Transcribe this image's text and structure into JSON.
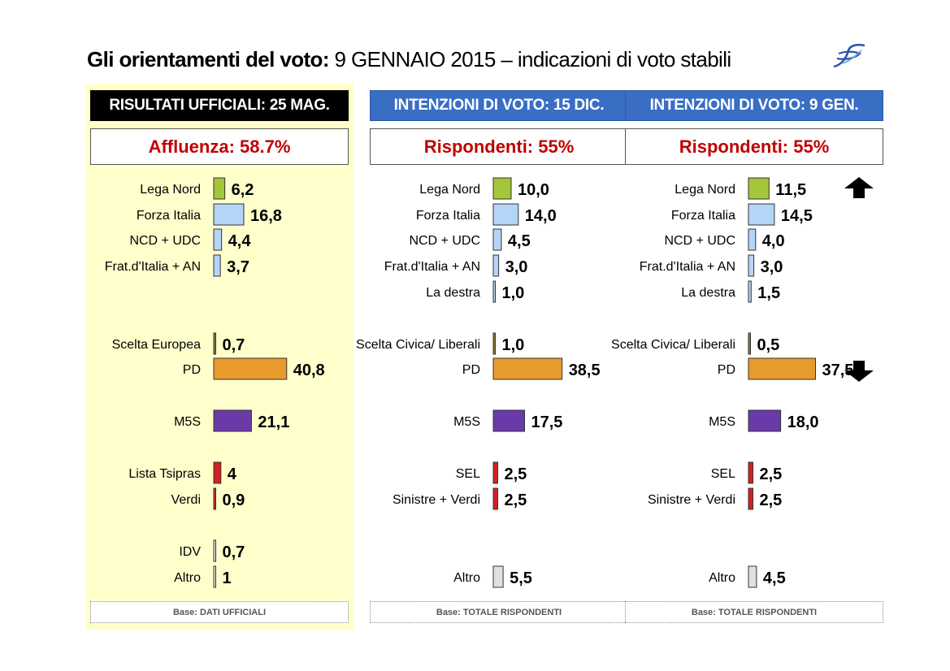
{
  "title": {
    "bold": "Gli orientamenti del voto:",
    "regular": " 9 GENNAIO 2015 – indicazioni di voto stabili"
  },
  "logo_icon": "stylized-f-logo",
  "colors": {
    "lega": "#a4c639",
    "centrodestra": "#b4d4f8",
    "scelta": "#8b7d2a",
    "pd": "#e89a2c",
    "m5s": "#6a3aa8",
    "sinistra": "#d42020",
    "altro": "#e0e0e0",
    "header_blue": "#3a6ec5",
    "highlight_panel": "#ffffcc",
    "accent_red": "#c00000"
  },
  "trend_icons": {
    "lega_nord": "arrow-up-icon",
    "pd": "arrow-down-icon"
  },
  "panels": [
    {
      "header": "RISULTATI UFFICIALI:  25 MAG.",
      "subtitle": "Affluenza: 58.7%",
      "footer": "Base: DATI UFFICIALI"
    },
    {
      "header": "INTENZIONI DI VOTO:  15 DIC.",
      "subtitle": "Rispondenti: 55%",
      "footer": "Base: TOTALE RISPONDENTI"
    },
    {
      "header": "INTENZIONI DI VOTO:  9 GEN.",
      "subtitle": "Rispondenti: 55%",
      "footer": "Base: TOTALE RISPONDENTI"
    }
  ],
  "chart_data": [
    {
      "type": "bar",
      "orientation": "horizontal",
      "items": [
        {
          "label": "Lega Nord",
          "value": 6.2,
          "display": "6,2",
          "color": "lega"
        },
        {
          "label": "Forza Italia",
          "value": 16.8,
          "display": "16,8",
          "color": "centrodestra"
        },
        {
          "label": "NCD + UDC",
          "value": 4.4,
          "display": "4,4",
          "color": "centrodestra"
        },
        {
          "label": "Frat.d'Italia + AN",
          "value": 3.7,
          "display": "3,7",
          "color": "centrodestra"
        },
        {
          "label": "Scelta Europea",
          "value": 0.7,
          "display": "0,7",
          "color": "scelta"
        },
        {
          "label": "PD",
          "value": 40.8,
          "display": "40,8",
          "color": "pd"
        },
        {
          "label": "M5S",
          "value": 21.1,
          "display": "21,1",
          "color": "m5s"
        },
        {
          "label": "Lista Tsipras",
          "value": 4,
          "display": "4",
          "color": "sinistra"
        },
        {
          "label": "Verdi",
          "value": 0.9,
          "display": "0,9",
          "color": "sinistra"
        },
        {
          "label": "IDV",
          "value": 0.7,
          "display": "0,7",
          "color": "altro"
        },
        {
          "label": "Altro",
          "value": 1,
          "display": "1",
          "color": "altro"
        }
      ]
    },
    {
      "type": "bar",
      "orientation": "horizontal",
      "items": [
        {
          "label": "Lega Nord",
          "value": 10.0,
          "display": "10,0",
          "color": "lega"
        },
        {
          "label": "Forza Italia",
          "value": 14.0,
          "display": "14,0",
          "color": "centrodestra"
        },
        {
          "label": "NCD + UDC",
          "value": 4.5,
          "display": "4,5",
          "color": "centrodestra"
        },
        {
          "label": "Frat.d'Italia + AN",
          "value": 3.0,
          "display": "3,0",
          "color": "centrodestra"
        },
        {
          "label": "La destra",
          "value": 1.0,
          "display": "1,0",
          "color": "centrodestra"
        },
        {
          "label": "Scelta Civica/ Liberali",
          "value": 1.0,
          "display": "1,0",
          "color": "scelta"
        },
        {
          "label": "PD",
          "value": 38.5,
          "display": "38,5",
          "color": "pd"
        },
        {
          "label": "M5S",
          "value": 17.5,
          "display": "17,5",
          "color": "m5s"
        },
        {
          "label": "SEL",
          "value": 2.5,
          "display": "2,5",
          "color": "sinistra"
        },
        {
          "label": "Sinistre + Verdi",
          "value": 2.5,
          "display": "2,5",
          "color": "sinistra"
        },
        {
          "label": "Altro",
          "value": 5.5,
          "display": "5,5",
          "color": "altro"
        }
      ]
    },
    {
      "type": "bar",
      "orientation": "horizontal",
      "items": [
        {
          "label": "Lega Nord",
          "value": 11.5,
          "display": "11,5",
          "color": "lega"
        },
        {
          "label": "Forza Italia",
          "value": 14.5,
          "display": "14,5",
          "color": "centrodestra"
        },
        {
          "label": "NCD + UDC",
          "value": 4.0,
          "display": "4,0",
          "color": "centrodestra"
        },
        {
          "label": "Frat.d'Italia + AN",
          "value": 3.0,
          "display": "3,0",
          "color": "centrodestra"
        },
        {
          "label": "La destra",
          "value": 1.5,
          "display": "1,5",
          "color": "centrodestra"
        },
        {
          "label": "Scelta Civica/ Liberali",
          "value": 0.5,
          "display": "0,5",
          "color": "scelta"
        },
        {
          "label": "PD",
          "value": 37.5,
          "display": "37,5",
          "color": "pd"
        },
        {
          "label": "M5S",
          "value": 18.0,
          "display": "18,0",
          "color": "m5s"
        },
        {
          "label": "SEL",
          "value": 2.5,
          "display": "2,5",
          "color": "sinistra"
        },
        {
          "label": "Sinistre + Verdi",
          "value": 2.5,
          "display": "2,5",
          "color": "sinistra"
        },
        {
          "label": "Altro",
          "value": 4.5,
          "display": "4,5",
          "color": "altro"
        }
      ]
    }
  ]
}
